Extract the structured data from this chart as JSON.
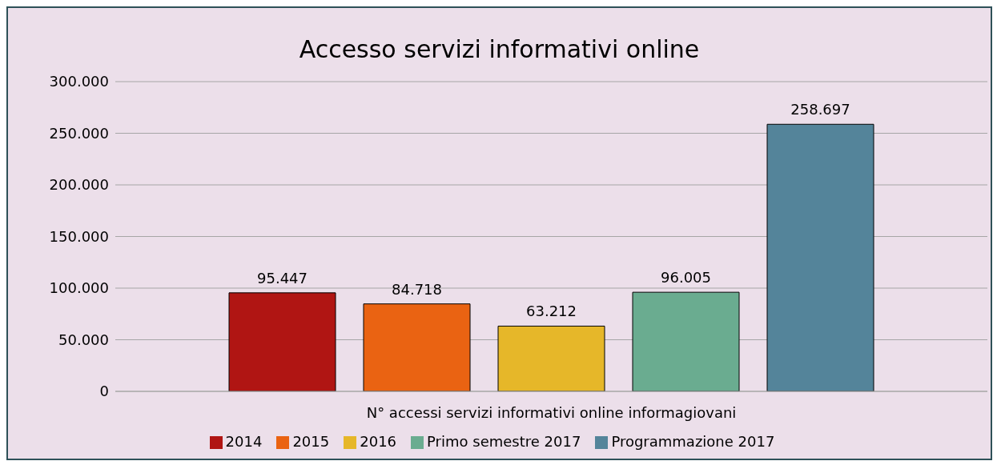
{
  "chart_data": {
    "type": "bar",
    "title": "Accesso servizi informativi online",
    "categories": [
      "N° accessi servizi informativi online informagiovani"
    ],
    "series": [
      {
        "name": "2014",
        "color": "#b01513",
        "values": [
          95447
        ],
        "value_labels": [
          "95.447"
        ]
      },
      {
        "name": "2015",
        "color": "#ea6312",
        "values": [
          84718
        ],
        "value_labels": [
          "84.718"
        ]
      },
      {
        "name": "2016",
        "color": "#e6b729",
        "values": [
          63212
        ],
        "value_labels": [
          "63.212"
        ]
      },
      {
        "name": "Primo semestre 2017",
        "color": "#6aac90",
        "values": [
          96005
        ],
        "value_labels": [
          "96.005"
        ]
      },
      {
        "name": "Programmazione 2017",
        "color": "#54849a",
        "values": [
          258697
        ],
        "value_labels": [
          "258.697"
        ]
      }
    ],
    "ylim": [
      0,
      300000
    ],
    "yticks": [
      {
        "value": 0,
        "label": "0"
      },
      {
        "value": 50000,
        "label": "50.000"
      },
      {
        "value": 100000,
        "label": "100.000"
      },
      {
        "value": 150000,
        "label": "150.000"
      },
      {
        "value": 200000,
        "label": "200.000"
      },
      {
        "value": 250000,
        "label": "250.000"
      },
      {
        "value": 300000,
        "label": "300.000"
      }
    ],
    "grid": "y",
    "legend": "bottom"
  }
}
